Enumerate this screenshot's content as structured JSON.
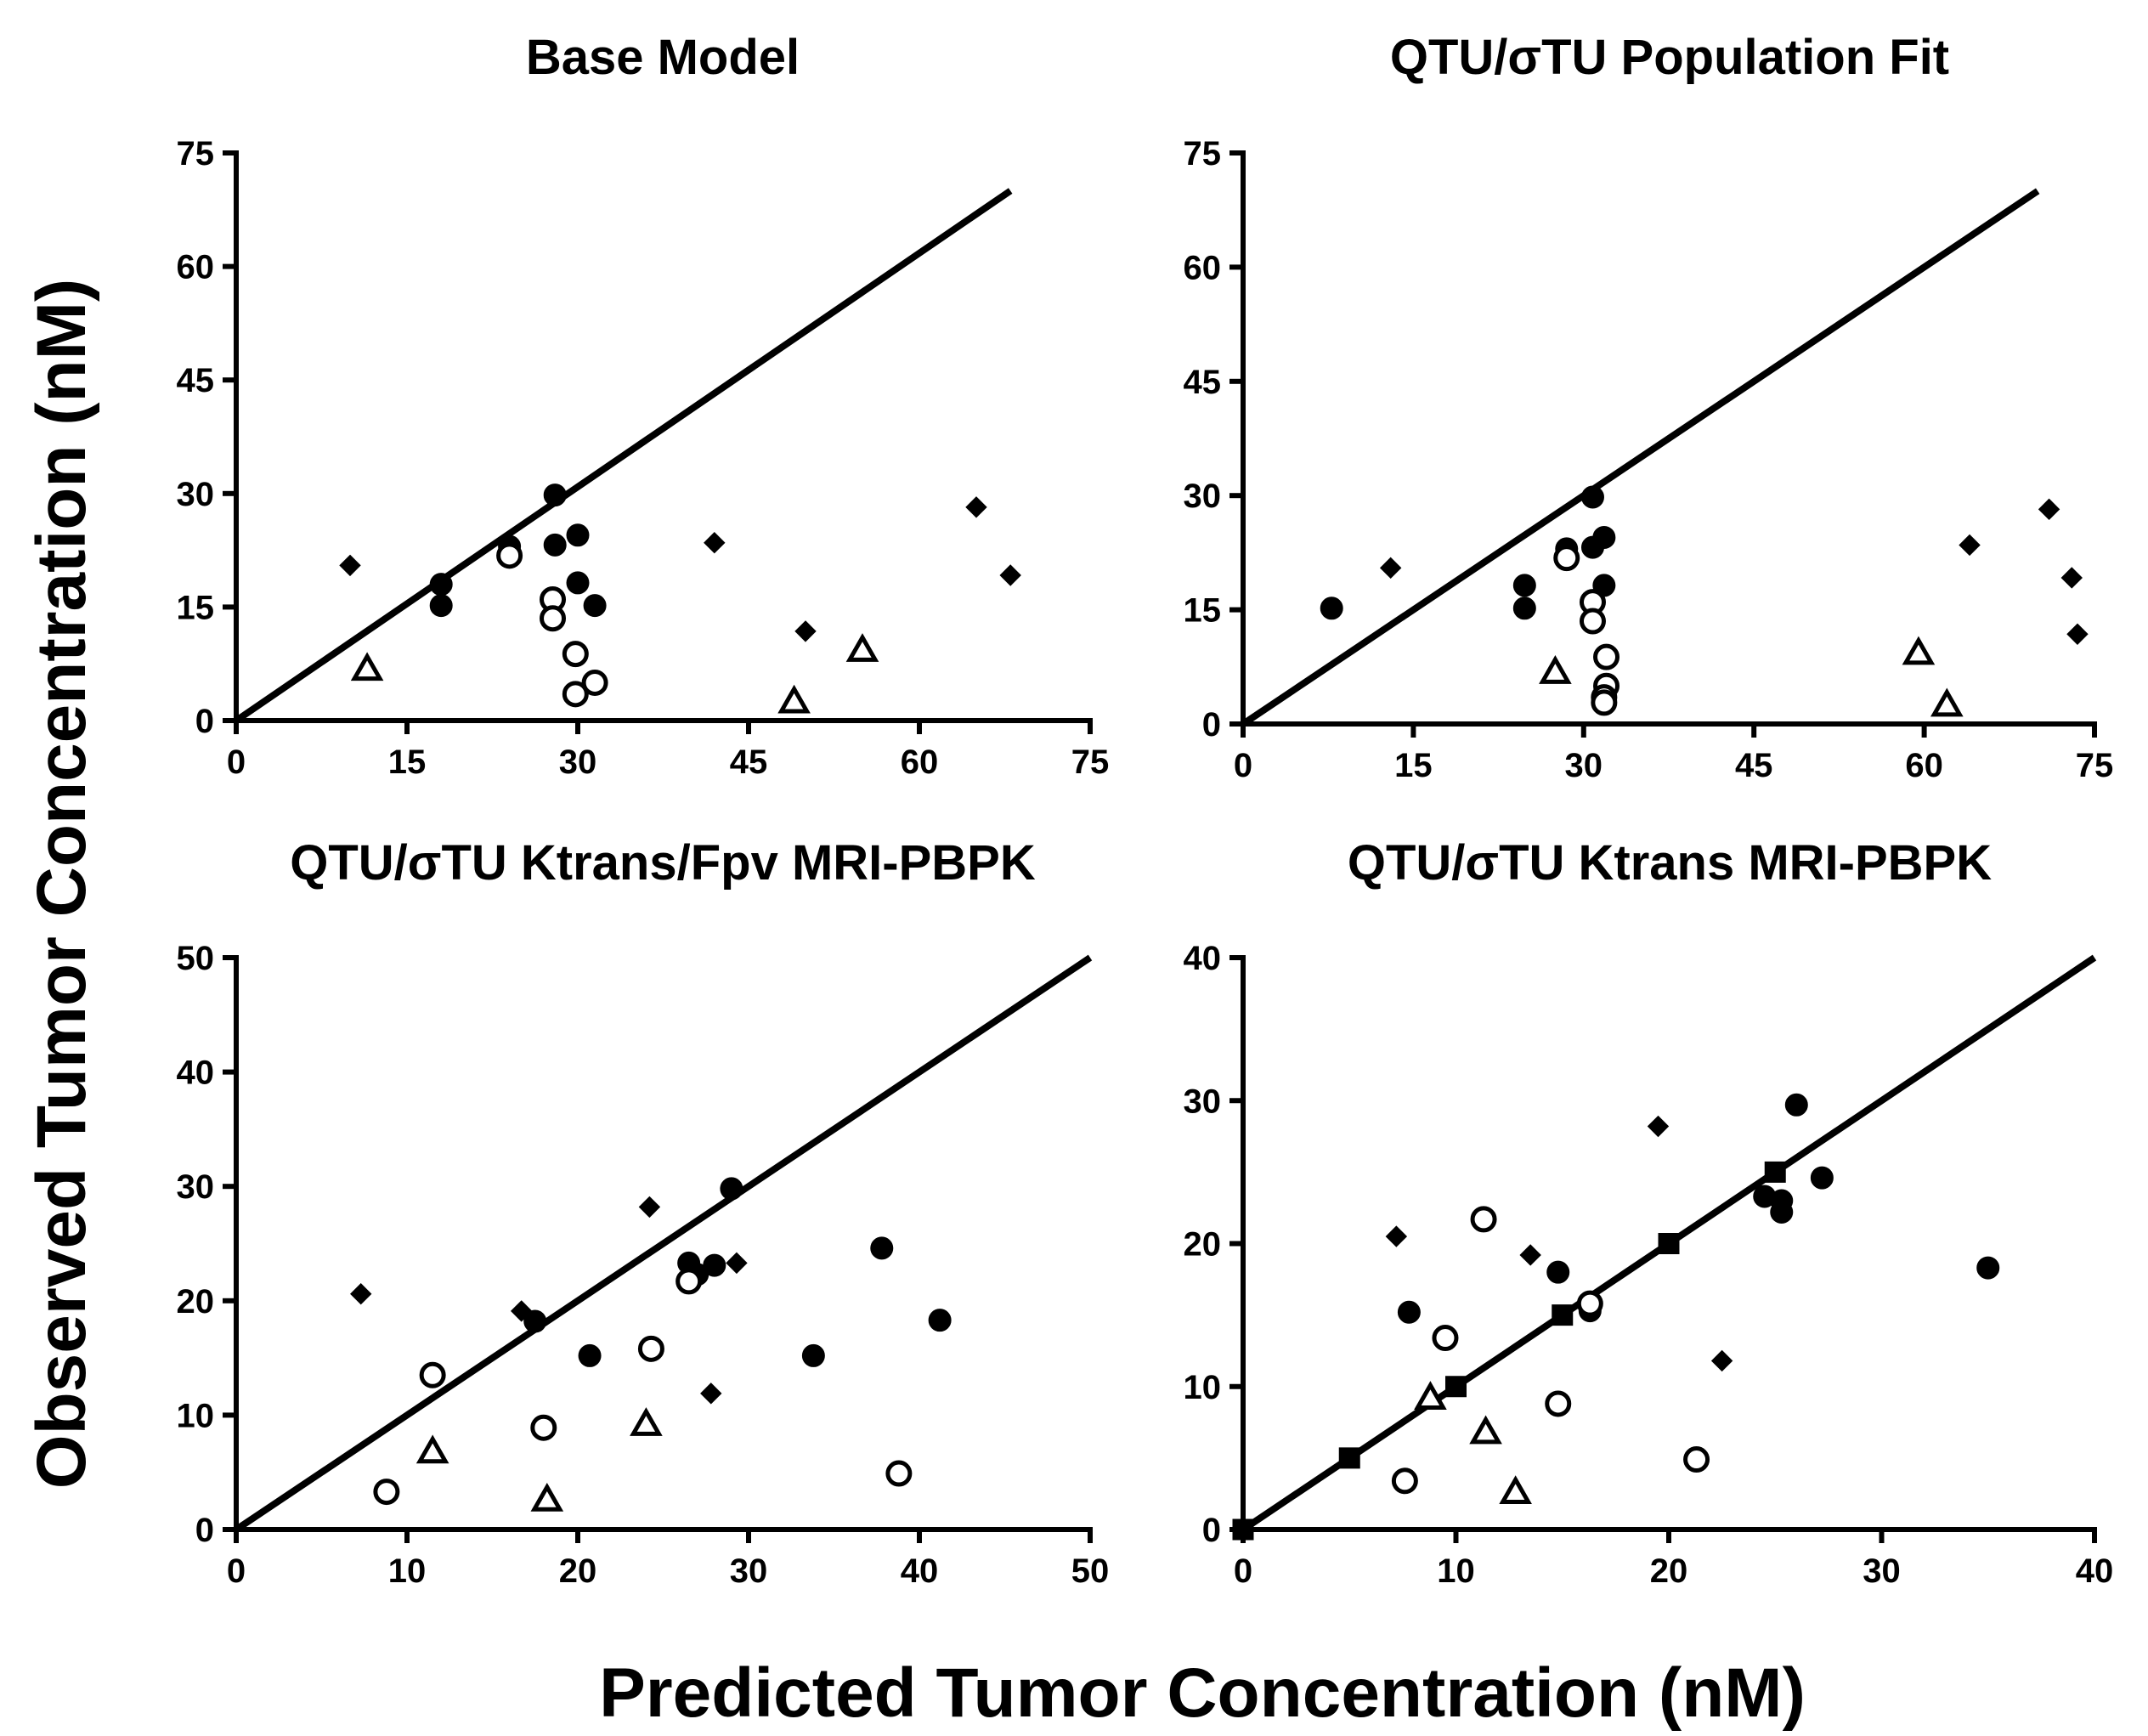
{
  "figure": {
    "ylabel": "Observed Tumor Concentration (nM)",
    "xlabel": "Predicted Tumor Concentration (nM)"
  },
  "chart_data": [
    {
      "type": "scatter",
      "title": "Base Model",
      "xlim": [
        0,
        75
      ],
      "ylim": [
        0,
        75
      ],
      "xticks": [
        0,
        15,
        30,
        45,
        60,
        75
      ],
      "yticks": [
        0,
        15,
        30,
        45,
        60,
        75
      ],
      "identity_line": [
        [
          0,
          0
        ],
        [
          68,
          70
        ]
      ],
      "series": [
        {
          "name": "filled-circle",
          "marker": "circle-filled",
          "points": [
            [
              18,
              18
            ],
            [
              18,
              15.2
            ],
            [
              24,
              23
            ],
            [
              24,
              22
            ],
            [
              28,
              29.8
            ],
            [
              28,
              23.2
            ],
            [
              30,
              24.5
            ],
            [
              30,
              18.2
            ],
            [
              31.5,
              15.2
            ]
          ]
        },
        {
          "name": "open-circle",
          "marker": "circle-open",
          "points": [
            [
              24,
              21.8
            ],
            [
              27.8,
              16
            ],
            [
              27.8,
              13.5
            ],
            [
              29.8,
              8.8
            ],
            [
              31.5,
              5
            ],
            [
              29.8,
              3.5
            ]
          ]
        },
        {
          "name": "diamond",
          "marker": "diamond-filled",
          "points": [
            [
              10,
              20.5
            ],
            [
              42,
              23.5
            ],
            [
              50,
              11.8
            ],
            [
              65,
              28.2
            ],
            [
              68,
              19.2
            ]
          ]
        },
        {
          "name": "triangle",
          "marker": "triangle-open",
          "points": [
            [
              11.5,
              6.8
            ],
            [
              49,
              2.5
            ],
            [
              55,
              9.3
            ]
          ]
        }
      ]
    },
    {
      "type": "scatter",
      "title": "QTU/σTU Population Fit",
      "xlim": [
        0,
        75
      ],
      "ylim": [
        0,
        75
      ],
      "xticks": [
        0,
        15,
        30,
        45,
        60,
        75
      ],
      "yticks": [
        0,
        15,
        30,
        45,
        60,
        75
      ],
      "identity_line": [
        [
          0,
          0
        ],
        [
          70,
          70
        ]
      ],
      "series": [
        {
          "name": "filled-circle",
          "marker": "circle-filled",
          "points": [
            [
              7.8,
              15.2
            ],
            [
              24.8,
              18.2
            ],
            [
              24.8,
              15.2
            ],
            [
              28.5,
              23
            ],
            [
              28.5,
              22
            ],
            [
              30.8,
              29.8
            ],
            [
              30.8,
              23.2
            ],
            [
              31.8,
              24.5
            ],
            [
              31.8,
              18.2
            ]
          ]
        },
        {
          "name": "open-circle",
          "marker": "circle-open",
          "points": [
            [
              28.5,
              21.8
            ],
            [
              30.8,
              16
            ],
            [
              30.8,
              13.5
            ],
            [
              32,
              8.8
            ],
            [
              32,
              5
            ],
            [
              31.8,
              3.5
            ],
            [
              31.8,
              2.8
            ]
          ]
        },
        {
          "name": "diamond",
          "marker": "diamond-filled",
          "points": [
            [
              13,
              20.5
            ],
            [
              64,
              23.5
            ],
            [
              71,
              28.2
            ],
            [
              73,
              19.2
            ],
            [
              73.5,
              11.8
            ]
          ]
        },
        {
          "name": "triangle",
          "marker": "triangle-open",
          "points": [
            [
              27.5,
              6.8
            ],
            [
              59.5,
              9.3
            ],
            [
              62,
              2.5
            ]
          ]
        }
      ]
    },
    {
      "type": "scatter",
      "title": "QTU/σTU Ktrans/Fpv MRI-PBPK",
      "xlim": [
        0,
        50
      ],
      "ylim": [
        0,
        50
      ],
      "xticks": [
        0,
        10,
        20,
        30,
        40,
        50
      ],
      "yticks": [
        0,
        10,
        20,
        30,
        40,
        50
      ],
      "identity_line": [
        [
          0,
          0
        ],
        [
          50,
          50
        ]
      ],
      "series": [
        {
          "name": "filled-circle",
          "marker": "circle-filled",
          "points": [
            [
              17.5,
              18.2
            ],
            [
              20.7,
              15.2
            ],
            [
              26.5,
              23.3
            ],
            [
              27,
              22.3
            ],
            [
              28,
              23.1
            ],
            [
              29,
              29.8
            ],
            [
              33.8,
              15.2
            ],
            [
              37.8,
              24.6
            ],
            [
              41.2,
              18.3
            ]
          ]
        },
        {
          "name": "open-circle",
          "marker": "circle-open",
          "points": [
            [
              8.8,
              3.3
            ],
            [
              11.5,
              13.5
            ],
            [
              18,
              8.9
            ],
            [
              24.3,
              15.8
            ],
            [
              26.5,
              21.7
            ],
            [
              38.8,
              4.9
            ]
          ]
        },
        {
          "name": "diamond",
          "marker": "diamond-filled",
          "points": [
            [
              7.3,
              20.6
            ],
            [
              16.7,
              19.1
            ],
            [
              24.2,
              28.2
            ],
            [
              27.8,
              11.9
            ],
            [
              29.3,
              23.3
            ]
          ]
        },
        {
          "name": "triangle",
          "marker": "triangle-open",
          "points": [
            [
              11.5,
              6.8
            ],
            [
              18.2,
              2.6
            ],
            [
              24,
              9.2
            ]
          ]
        }
      ]
    },
    {
      "type": "scatter",
      "title": "QTU/σTU Ktrans MRI-PBPK",
      "xlim": [
        0,
        40
      ],
      "ylim": [
        0,
        40
      ],
      "xticks": [
        0,
        10,
        20,
        30,
        40
      ],
      "yticks": [
        0,
        10,
        20,
        30,
        40
      ],
      "identity_line": [
        [
          0,
          0
        ],
        [
          40,
          40
        ]
      ],
      "series": [
        {
          "name": "filled-circle",
          "marker": "circle-filled",
          "points": [
            [
              7.8,
              15.2
            ],
            [
              14.8,
              18
            ],
            [
              16.3,
              15.3
            ],
            [
              24.5,
              23.3
            ],
            [
              25.3,
              23
            ],
            [
              25.3,
              22.2
            ],
            [
              26,
              29.7
            ],
            [
              27.2,
              24.6
            ],
            [
              35,
              18.3
            ]
          ]
        },
        {
          "name": "open-circle",
          "marker": "circle-open",
          "points": [
            [
              7.6,
              3.4
            ],
            [
              9.5,
              13.4
            ],
            [
              11.3,
              21.7
            ],
            [
              14.8,
              8.8
            ],
            [
              16.3,
              15.8
            ],
            [
              21.3,
              4.9
            ]
          ]
        },
        {
          "name": "diamond",
          "marker": "diamond-filled",
          "points": [
            [
              7.2,
              20.5
            ],
            [
              13.5,
              19.2
            ],
            [
              19.5,
              28.2
            ],
            [
              22.5,
              11.8
            ]
          ]
        },
        {
          "name": "triangle",
          "marker": "triangle-open",
          "points": [
            [
              8.8,
              9.2
            ],
            [
              11.4,
              6.8
            ],
            [
              12.8,
              2.6
            ]
          ]
        },
        {
          "name": "square",
          "marker": "square-filled",
          "points": [
            [
              0,
              0
            ],
            [
              5,
              5
            ],
            [
              10,
              10
            ],
            [
              15,
              15
            ],
            [
              20,
              20
            ],
            [
              25,
              25
            ]
          ]
        }
      ]
    }
  ]
}
